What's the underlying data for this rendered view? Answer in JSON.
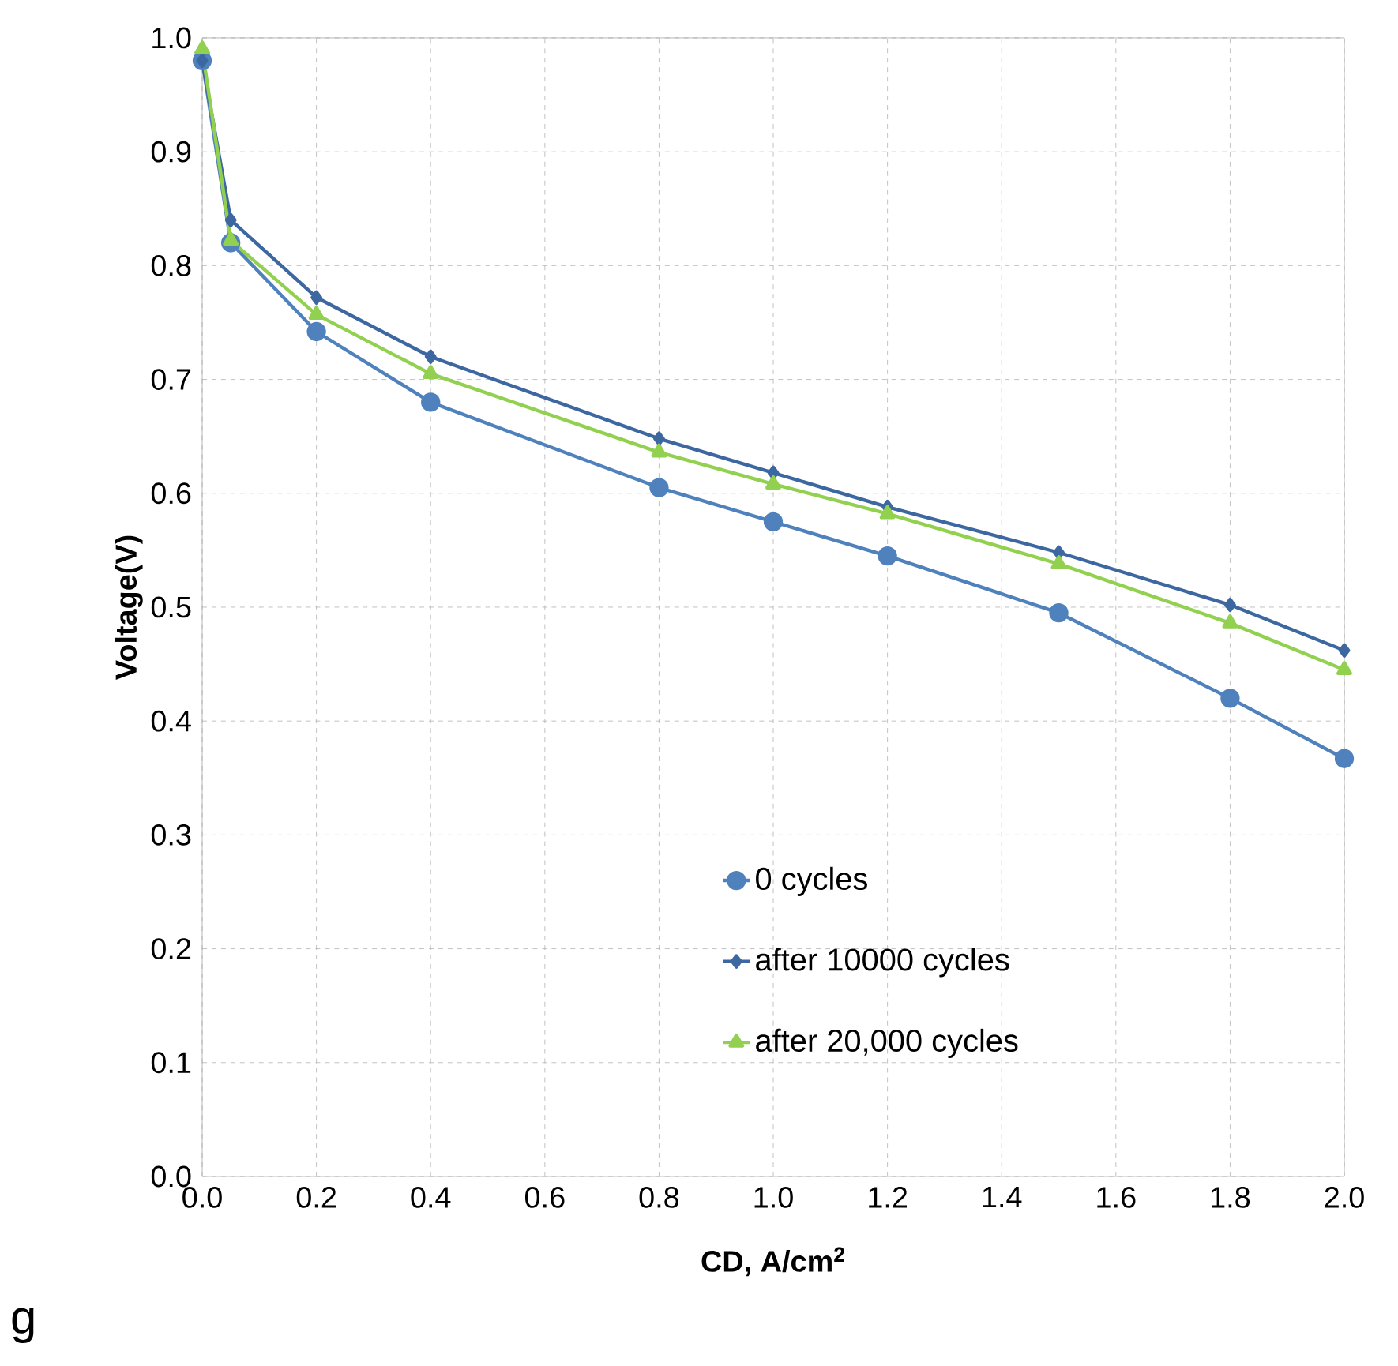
{
  "chart_data": {
    "type": "line",
    "xlabel": "CD, A/cm$^{2}$",
    "ylabel": "Voltage(V)",
    "x": [
      0,
      0.05,
      0.2,
      0.4,
      0.8,
      1.0,
      1.2,
      1.5,
      1.8,
      2.0
    ],
    "series": [
      {
        "name": "0 cycles",
        "color": "#4f81bd",
        "marker": "circle",
        "values": [
          0.98,
          0.82,
          0.742,
          0.68,
          0.605,
          0.575,
          0.545,
          0.495,
          0.42,
          0.367
        ]
      },
      {
        "name": "after 10000 cycles",
        "color": "#3d67a0",
        "marker": "diamond",
        "values": [
          0.98,
          0.84,
          0.772,
          0.72,
          0.648,
          0.618,
          0.588,
          0.548,
          0.502,
          0.462
        ]
      },
      {
        "name": "after 20,000 cycles",
        "color": "#92d050",
        "marker": "triangle",
        "values": [
          0.99,
          0.822,
          0.757,
          0.705,
          0.636,
          0.608,
          0.582,
          0.538,
          0.486,
          0.445
        ]
      }
    ],
    "xlim": [
      0,
      2
    ],
    "ylim": [
      0,
      1
    ],
    "xticks": [
      {
        "value": 0,
        "label": "0.0"
      },
      {
        "value": 0.2,
        "label": "0.2"
      },
      {
        "value": 0.4,
        "label": "0.4"
      },
      {
        "value": 0.6,
        "label": "0.6"
      },
      {
        "value": 0.8,
        "label": "0.8"
      },
      {
        "value": 1.0,
        "label": "1.0"
      },
      {
        "value": 1.2,
        "label": "1.2"
      },
      {
        "value": 1.4,
        "label": "1.4"
      },
      {
        "value": 1.6,
        "label": "1.6"
      },
      {
        "value": 1.8,
        "label": "1.8"
      },
      {
        "value": 2.0,
        "label": "2.0"
      }
    ],
    "yticks": [
      {
        "value": 0,
        "label": "0.0"
      },
      {
        "value": 0.1,
        "label": "0.1"
      },
      {
        "value": 0.2,
        "label": "0.2"
      },
      {
        "value": 0.3,
        "label": "0.3"
      },
      {
        "value": 0.4,
        "label": "0.4"
      },
      {
        "value": 0.5,
        "label": "0.5"
      },
      {
        "value": 0.6,
        "label": "0.6"
      },
      {
        "value": 0.7,
        "label": "0.7"
      },
      {
        "value": 0.8,
        "label": "0.8"
      },
      {
        "value": 0.9,
        "label": "0.9"
      },
      {
        "value": 1.0,
        "label": "1.0"
      }
    ],
    "grid": true,
    "legend": "bottom",
    "line_style": "solid",
    "annotations": [
      "g"
    ]
  }
}
